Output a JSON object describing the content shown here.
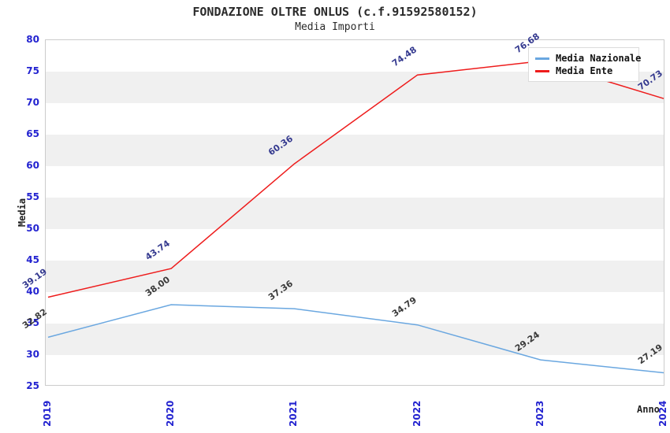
{
  "chart_data": {
    "type": "line",
    "title": "FONDAZIONE OLTRE ONLUS (c.f.91592580152)",
    "subtitle": "Media Importi",
    "xlabel": "Anno",
    "ylabel": "Media",
    "x": [
      "2019",
      "2020",
      "2021",
      "2022",
      "2023",
      "2024"
    ],
    "series": [
      {
        "name": "Media Nazionale",
        "color": "#6aa7e0",
        "label_color": "#3a3a3a",
        "values": [
          32.82,
          38.0,
          37.36,
          34.79,
          29.24,
          27.19
        ]
      },
      {
        "name": "Media Ente",
        "color": "#ee1c1c",
        "label_color": "#34398f",
        "values": [
          39.19,
          43.74,
          60.36,
          74.48,
          76.68,
          70.73
        ]
      }
    ],
    "ylim": [
      25,
      80
    ],
    "ytick_step": 5,
    "grid": "horizontal-bands",
    "legend_position": "top-right",
    "tick_color": "#2323d0",
    "band_color": "#f0f0f0",
    "plot_border_color": "#cccccc"
  }
}
